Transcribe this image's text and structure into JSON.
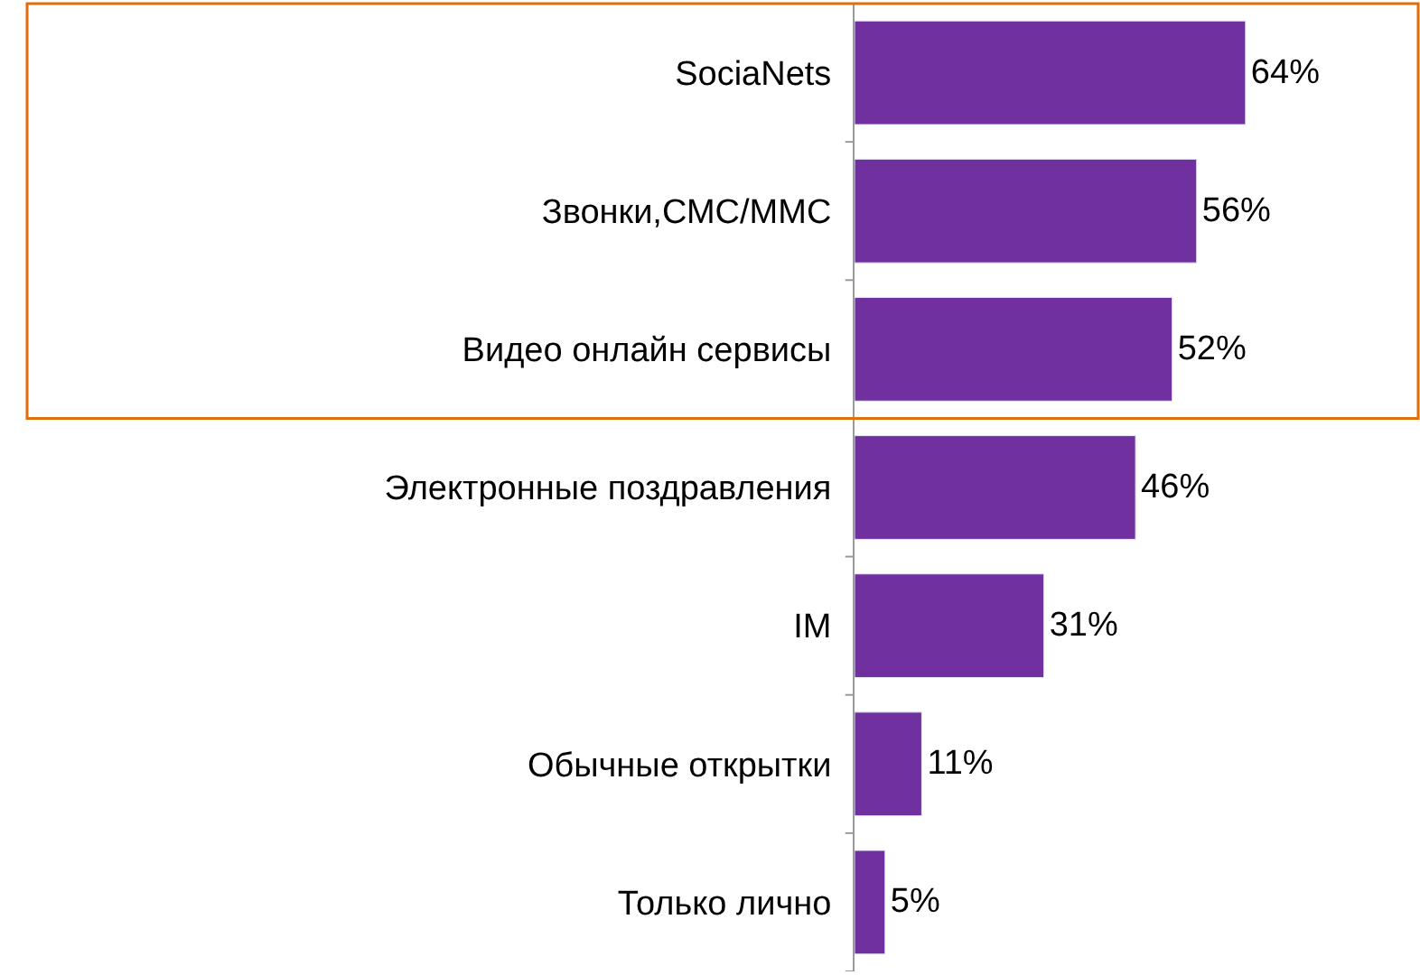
{
  "chart_data": {
    "type": "bar",
    "orientation": "horizontal",
    "categories": [
      "SociaNets",
      "Звонки,СМС/ММС",
      "Видео онлайн сервисы",
      "Электронные поздравления",
      "IM",
      "Обычные открытки",
      "Только лично"
    ],
    "values": [
      64,
      56,
      52,
      46,
      31,
      11,
      5
    ],
    "value_labels": [
      "64%",
      "56%",
      "52%",
      "46%",
      "31%",
      "11%",
      "5%"
    ],
    "color": "#7030a0"
  }
}
